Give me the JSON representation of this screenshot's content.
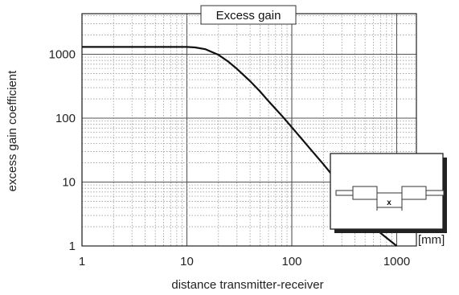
{
  "chart_data": {
    "type": "line",
    "title": "Excess gain",
    "xlabel": "distance transmitter-receiver",
    "ylabel": "excess gain coefficient",
    "x_unit": "[mm]",
    "x_scale": "log",
    "y_scale": "log",
    "xlim": [
      1,
      1000
    ],
    "ylim": [
      1,
      4000
    ],
    "x_ticks": [
      "1",
      "10",
      "100",
      "1000"
    ],
    "y_ticks": [
      "1",
      "10",
      "100",
      "1000"
    ],
    "grid": true,
    "series": [
      {
        "x": [
          1,
          5,
          10,
          12,
          15,
          20,
          25,
          30,
          40,
          50,
          60,
          80,
          100,
          150,
          200,
          300,
          500,
          700,
          1000
        ],
        "values": [
          1300,
          1300,
          1300,
          1280,
          1200,
          980,
          760,
          590,
          380,
          260,
          185,
          110,
          72,
          33,
          19,
          8.4,
          3,
          1.6,
          0.85
        ]
      }
    ],
    "inset": {
      "label": "x",
      "icon": "transmitter-receiver-diagram-icon"
    }
  }
}
